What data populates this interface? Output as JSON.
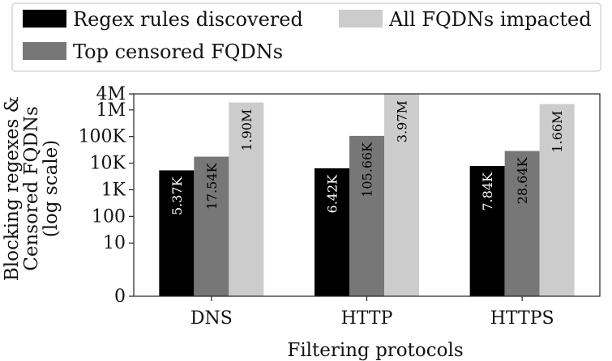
{
  "chart_data": {
    "type": "bar",
    "categories": [
      "DNS",
      "HTTP",
      "HTTPS"
    ],
    "series": [
      {
        "name": "Regex rules discovered",
        "values": [
          5370,
          6420,
          7840
        ],
        "labels": [
          "5.37K",
          "6.42K",
          "7.84K"
        ],
        "color": "#000000",
        "label_color": "#ffffff"
      },
      {
        "name": "Top censored FQDNs",
        "values": [
          17540,
          105660,
          28640
        ],
        "labels": [
          "17.54K",
          "105.66K",
          "28.64K"
        ],
        "color": "#777777",
        "label_color": "#000000"
      },
      {
        "name": "All FQDNs impacted",
        "values": [
          1900000,
          3970000,
          1660000
        ],
        "labels": [
          "1.90M",
          "3.97M",
          "1.66M"
        ],
        "color": "#cccccc",
        "label_color": "#000000"
      }
    ],
    "y_scale": "symlog",
    "ylim": [
      0,
      4000000
    ],
    "y_ticks": [
      {
        "value": 0,
        "label": "0"
      },
      {
        "value": 10,
        "label": "10"
      },
      {
        "value": 100,
        "label": "100"
      },
      {
        "value": 1000,
        "label": "1K"
      },
      {
        "value": 10000,
        "label": "10K"
      },
      {
        "value": 100000,
        "label": "100K"
      },
      {
        "value": 1000000,
        "label": "1M"
      },
      {
        "value": 4000000,
        "label": "4M"
      }
    ],
    "xlabel": "Filtering protocols",
    "ylabel_lines": [
      "Blocking regexes &",
      "Censored FQDNs",
      "(log scale)"
    ],
    "legend": {
      "placement": "top",
      "entries": [
        "Regex rules discovered",
        "All FQDNs impacted",
        "Top censored FQDNs"
      ]
    },
    "grid": false
  }
}
